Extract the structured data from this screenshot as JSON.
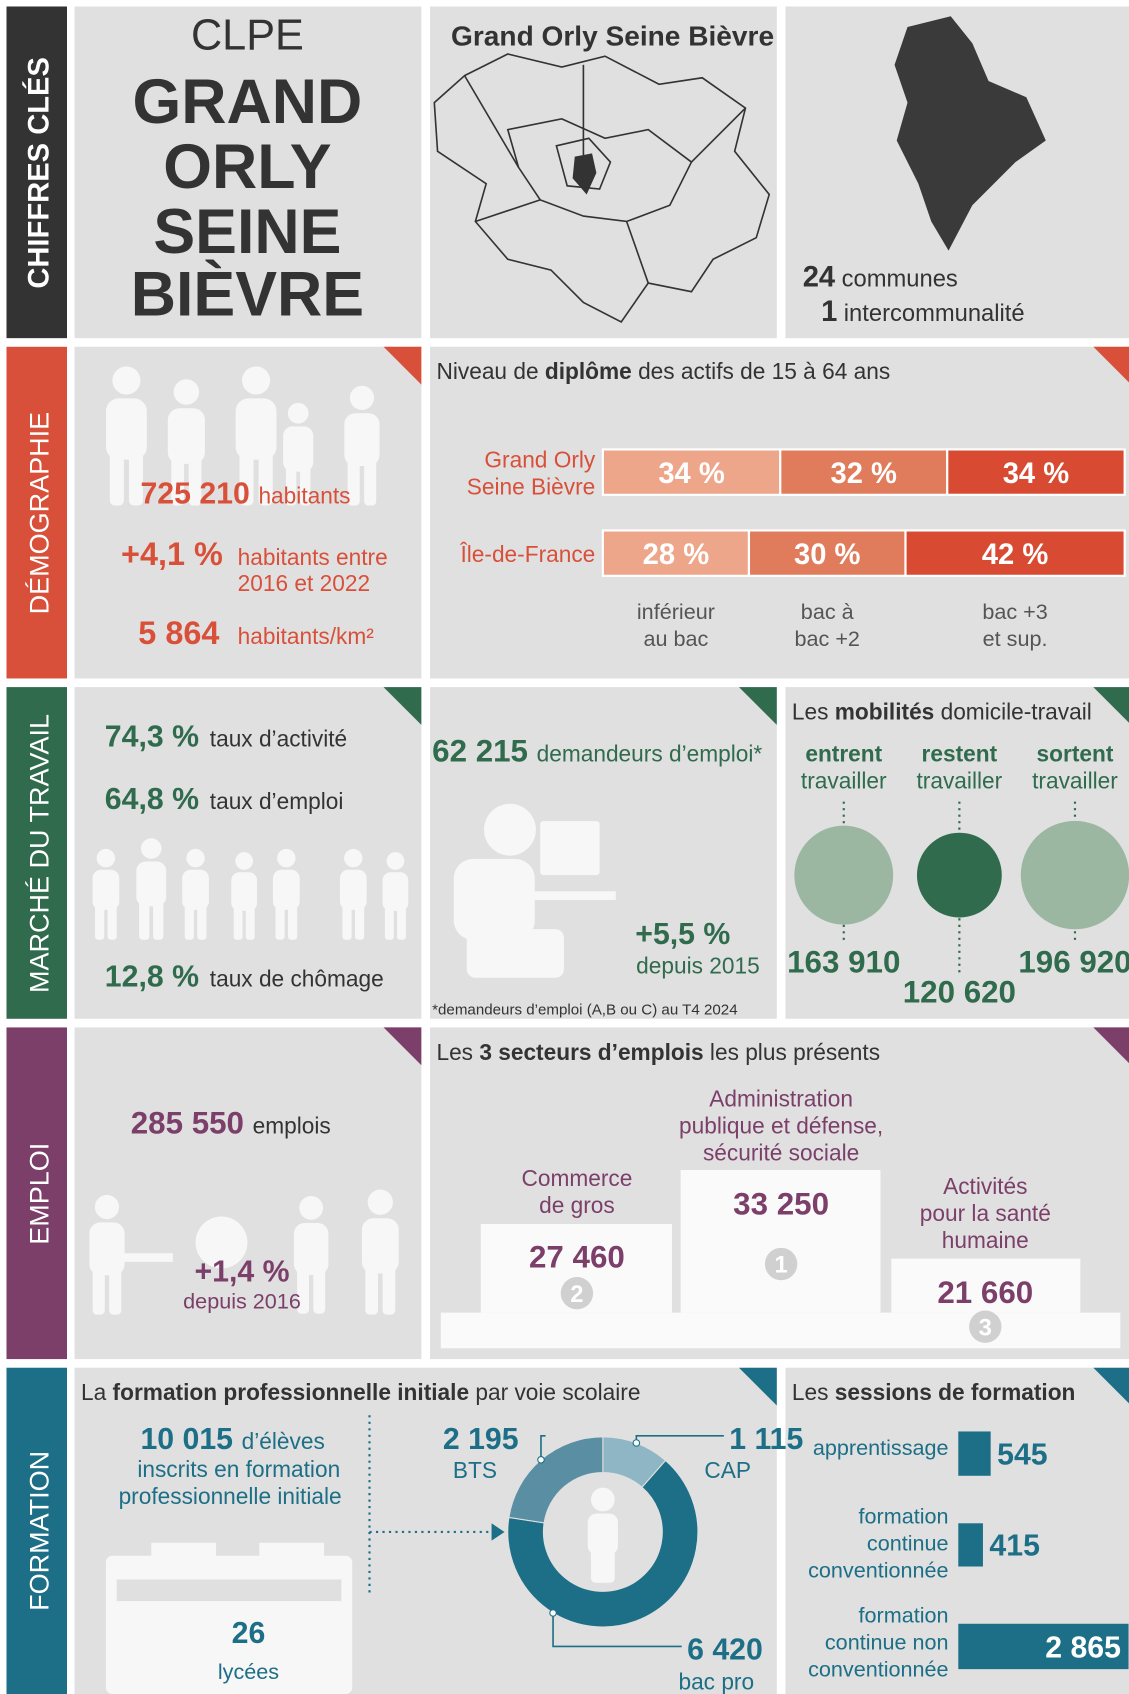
{
  "sections": [
    "CHIFFRES CLÉS",
    "DÉMOGRAPHIE",
    "MARCHÉ DU TRAVAIL",
    "EMPLOI",
    "FORMATION"
  ],
  "identity": {
    "org": "CLPE",
    "name_lines": [
      "GRAND",
      "ORLY",
      "SEINE",
      "BIÈVRE"
    ],
    "map_title": "Grand Orly Seine Bièvre",
    "communes_count": "24",
    "communes_label": "communes",
    "interco_count": "1",
    "interco_label": "intercommunalité"
  },
  "demography": {
    "population": "725 210",
    "population_label": "habitants",
    "growth": "+4,1 %",
    "growth_label": [
      "habitants entre",
      "2016 et 2022"
    ],
    "density": "5 864",
    "density_label": "habitants/km²"
  },
  "diploma": {
    "title_parts": [
      "Niveau de ",
      "diplôme",
      " des actifs de 15 à 64 ans"
    ],
    "levels": [
      [
        "inférieur",
        "au bac"
      ],
      [
        "bac à",
        "bac +2"
      ],
      [
        "bac +3",
        "et sup."
      ]
    ],
    "colors": [
      "#eea68b",
      "#e07c5b",
      "#d84a31"
    ],
    "series": [
      {
        "name": [
          "Grand Orly",
          "Seine Bièvre"
        ],
        "values": [
          34,
          32,
          34
        ],
        "value_labels": [
          "34 %",
          "32 %",
          "34 %"
        ]
      },
      {
        "name": [
          "Île-de-France"
        ],
        "values": [
          28,
          30,
          42
        ],
        "value_labels": [
          "28 %",
          "30 %",
          "42 %"
        ]
      }
    ]
  },
  "labour": {
    "stats": [
      {
        "value": "74,3 %",
        "label": "taux d’activité"
      },
      {
        "value": "64,8 %",
        "label": "taux d’emploi"
      },
      {
        "value": "12,8 %",
        "label": "taux de chômage"
      }
    ],
    "jobseekers": "62 215",
    "jobseekers_label": "demandeurs d’emploi*",
    "change": "+5,5 %",
    "change_label": "depuis 2015",
    "footnote": "*demandeurs d’emploi (A,B ou C) au T4 2024"
  },
  "mobility": {
    "title_parts": [
      "Les ",
      "mobilités",
      " domicile-travail"
    ],
    "flows": [
      {
        "verb": "entrent",
        "label": "travailler",
        "value": 163910,
        "value_label": "163 910",
        "color": "#9bb7a1"
      },
      {
        "verb": "restent",
        "label": "travailler",
        "value": 120620,
        "value_label": "120 620",
        "color": "#2f6b4c"
      },
      {
        "verb": "sortent",
        "label": "travailler",
        "value": 196920,
        "value_label": "196 920",
        "color": "#9bb7a1"
      }
    ]
  },
  "employment": {
    "jobs": "285 550",
    "jobs_label": "emplois",
    "change": "+1,4 %",
    "change_label": "depuis 2016",
    "sectors_title_parts": [
      "Les ",
      "3 secteurs d’emplois",
      " les plus présents"
    ],
    "sectors": [
      {
        "name": [
          "Commerce",
          "de gros"
        ],
        "value": "27 460",
        "rank": "2"
      },
      {
        "name": [
          "Administration",
          "publique et défense,",
          "sécurité sociale"
        ],
        "value": "33 250",
        "rank": "1"
      },
      {
        "name": [
          "Activités",
          "pour la santé",
          "humaine"
        ],
        "value": "21 660",
        "rank": "3"
      }
    ]
  },
  "training": {
    "title_parts": [
      "La ",
      "formation professionnelle initiale",
      " par voie scolaire"
    ],
    "students": "10 015",
    "students_label": [
      "d’élèves",
      "inscrits en formation",
      "professionnelle initiale"
    ],
    "schools": "26",
    "schools_label": "lycées",
    "donut": {
      "categories": [
        "CAP",
        "bac pro",
        "BTS"
      ],
      "values": [
        1115,
        6420,
        2195
      ],
      "value_labels": [
        "1 115",
        "6 420",
        "2 195"
      ],
      "colors": [
        "#8fb6c4",
        "#1c6f86",
        "#5a8fa3"
      ]
    },
    "sessions_title_parts": [
      "Les ",
      "sessions de formation"
    ],
    "sessions": {
      "categories": [
        [
          "apprentissage"
        ],
        [
          "formation",
          "continue",
          "conventionnée"
        ],
        [
          "formation",
          "continue non",
          "conventionnée"
        ]
      ],
      "values": [
        545,
        415,
        2865
      ],
      "value_labels": [
        "545",
        "415",
        "2 865"
      ],
      "color": "#1c6f86"
    }
  }
}
